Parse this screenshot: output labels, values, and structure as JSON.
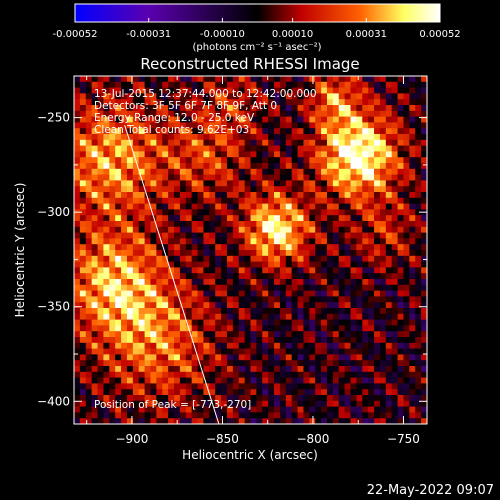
{
  "chart_data": {
    "type": "heatmap",
    "title": "Reconstructed RHESSI Image",
    "colorbar": {
      "label": "(photons cm⁻² s⁻¹ asec⁻²)",
      "ticks": [
        -0.00052,
        -0.00031,
        -0.0001,
        0.0001,
        0.00031,
        0.00052
      ],
      "tick_labels": [
        "-0.00052",
        "-0.00031",
        "-0.00010",
        "0.00010",
        "0.00031",
        "0.00052"
      ],
      "range": [
        -0.00052,
        0.00052
      ],
      "colors": [
        "#0000ff",
        "#5a00b0",
        "#000000",
        "#c00000",
        "#ff6000",
        "#ffff60",
        "#ffffff"
      ]
    },
    "xlabel": "Heliocentric X (arcsec)",
    "ylabel": "Heliocentric Y (arcsec)",
    "xlim": [
      -932,
      -737
    ],
    "ylim": [
      -412,
      -228
    ],
    "xticks": [
      -900,
      -850,
      -800,
      -750
    ],
    "yticks": [
      -250,
      -300,
      -350,
      -400
    ],
    "xtick_labels": [
      "−900",
      "−850",
      "−800",
      "−750"
    ],
    "ytick_labels": [
      "−250",
      "−300",
      "−350",
      "−400"
    ],
    "annotations": [
      "13-Jul-2015 12:37:44.000 to 12:42:00.000",
      "Detectors: 3F 5F 6F 7F 8F 9F, Att 0",
      "Energy Range: 12.0 - 25.0 keV",
      "Clean    Total counts: 9.62E+03"
    ],
    "peak_label": "Position of Peak = [-773,-270]",
    "peak": [
      -773,
      -270
    ],
    "blobs": [
      {
        "x": -775,
        "y": -270,
        "sigma": 16,
        "amp": 0.00052
      },
      {
        "x": -820,
        "y": -309,
        "sigma": 13,
        "amp": 0.00045
      },
      {
        "x": -788,
        "y": -240,
        "sigma": 10,
        "amp": 0.00026
      },
      {
        "x": -912,
        "y": -272,
        "sigma": 22,
        "amp": 0.00034
      },
      {
        "x": -910,
        "y": -338,
        "sigma": 20,
        "amp": 0.00036
      },
      {
        "x": -885,
        "y": -370,
        "sigma": 22,
        "amp": 0.00026
      },
      {
        "x": -858,
        "y": -270,
        "sigma": 16,
        "amp": 0.0002
      },
      {
        "x": -760,
        "y": -312,
        "sigma": 12,
        "amp": 0.00016
      },
      {
        "x": -845,
        "y": -242,
        "sigma": 12,
        "amp": 0.00015
      }
    ],
    "limb_line": [
      [
        -904,
        -254
      ],
      [
        -850,
        -418
      ]
    ]
  },
  "footer": {
    "date": "22-May-2022 09:07"
  }
}
